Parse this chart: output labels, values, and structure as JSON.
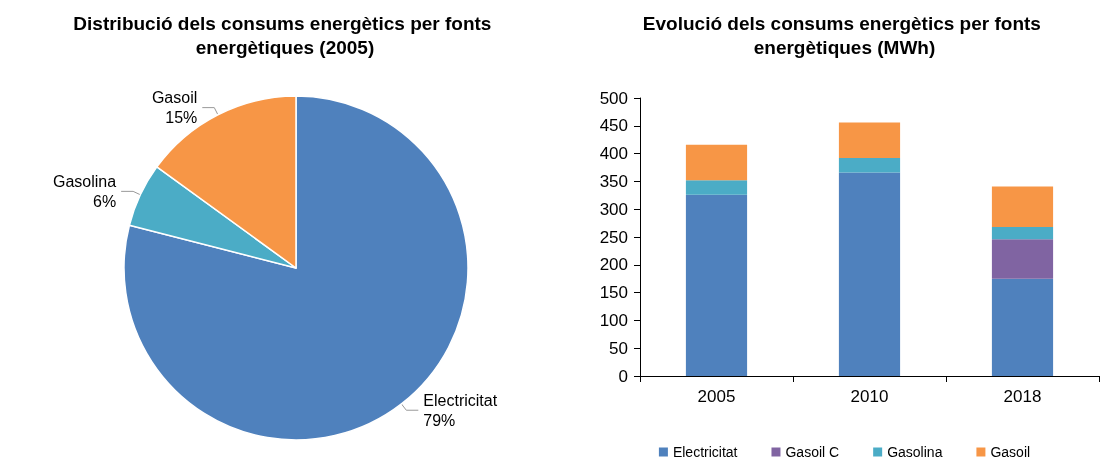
{
  "chart_data": [
    {
      "type": "pie",
      "title": "Distribució dels consums energètics per fonts energètiques (2005)",
      "categories": [
        "Electricitat",
        "Gasolina",
        "Gasoil"
      ],
      "values": [
        79,
        6,
        15
      ],
      "value_labels": [
        "79%",
        "6%",
        "15%"
      ],
      "colors": [
        "#4f81bd",
        "#4bacc6",
        "#f79646"
      ],
      "legend": false
    },
    {
      "type": "bar",
      "title": "Evolució dels consums energètics per fonts energètiques (MWh)",
      "categories": [
        "2005",
        "2010",
        "2018"
      ],
      "stacked": true,
      "ylim": [
        0,
        500
      ],
      "yticks": [
        0,
        50,
        100,
        150,
        200,
        250,
        300,
        350,
        400,
        450,
        500
      ],
      "grid": false,
      "legend": "bottom",
      "series": [
        {
          "name": "Electricitat",
          "color": "#4f81bd",
          "values": [
            326,
            366,
            175
          ]
        },
        {
          "name": "Gasoil C",
          "color": "#8064a2",
          "values": [
            null,
            null,
            71
          ]
        },
        {
          "name": "Gasolina",
          "color": "#4bacc6",
          "values": [
            26,
            26,
            22
          ]
        },
        {
          "name": "Gasoil",
          "color": "#f79646",
          "values": [
            64,
            64,
            73
          ]
        }
      ]
    }
  ]
}
